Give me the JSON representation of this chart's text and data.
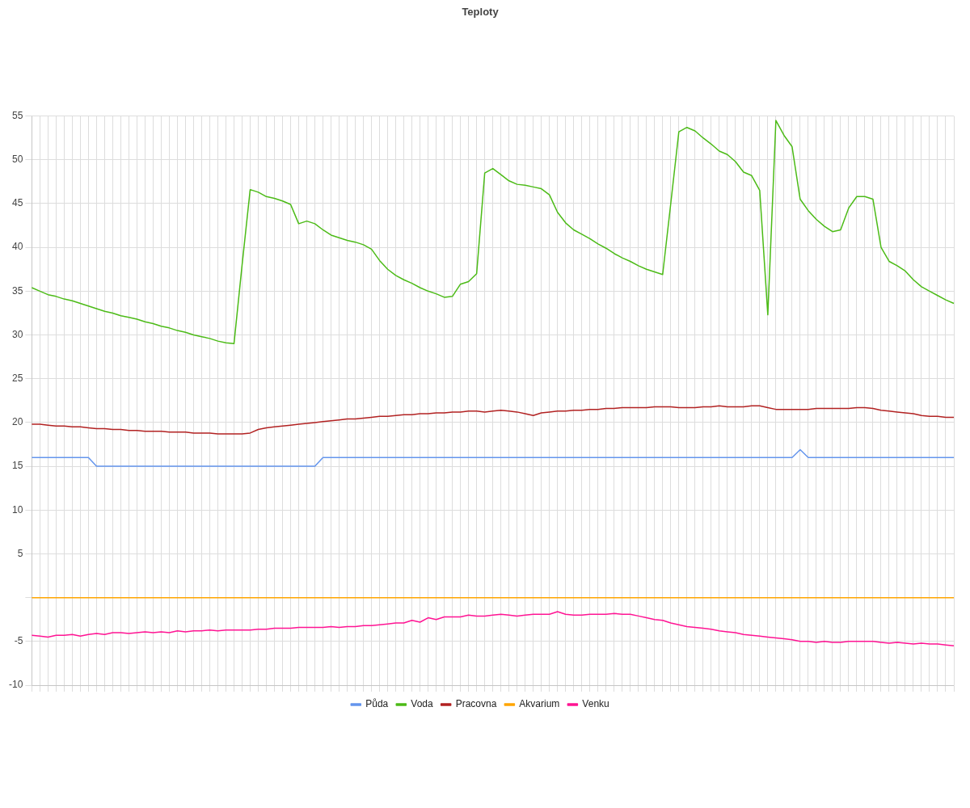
{
  "chart_data": {
    "type": "line",
    "title": "Teploty",
    "categories": [
      null,
      null,
      null,
      null,
      null,
      null,
      null,
      null,
      null,
      null,
      null,
      null,
      null,
      null,
      null,
      null,
      null,
      null,
      null,
      null,
      null,
      null,
      null,
      null,
      null,
      null,
      null,
      null,
      null,
      null,
      null,
      null,
      null,
      null,
      null,
      null,
      null,
      null,
      null,
      null,
      null,
      null,
      null,
      null,
      null,
      null,
      null,
      null,
      null,
      null,
      null,
      null,
      null,
      null,
      null,
      null,
      null,
      null,
      null,
      null,
      null,
      null,
      null,
      null,
      null,
      null,
      null,
      null,
      null,
      null,
      null,
      null,
      null,
      null,
      null,
      null,
      null,
      null,
      null,
      null,
      null,
      null,
      null,
      null,
      null,
      null,
      null,
      null,
      null,
      null,
      null,
      null,
      null,
      null,
      null,
      null,
      null,
      null,
      null,
      null,
      null,
      null,
      null,
      null,
      null,
      null,
      null,
      null,
      null,
      null,
      null,
      null,
      null,
      null,
      null
    ],
    "series": [
      {
        "name": "Půda",
        "color": "#6495ed",
        "values": [
          16,
          16,
          16,
          16,
          16,
          16,
          16,
          16,
          15,
          15,
          15,
          15,
          15,
          15,
          15,
          15,
          15,
          15,
          15,
          15,
          15,
          15,
          15,
          15,
          15,
          15,
          15,
          15,
          15,
          15,
          15,
          15,
          15,
          15,
          15,
          15,
          16,
          16,
          16,
          16,
          16,
          16,
          16,
          16,
          16,
          16,
          16,
          16,
          16,
          16,
          16,
          16,
          16,
          16,
          16,
          16,
          16,
          16,
          16,
          16,
          16,
          16,
          16,
          16,
          16,
          16,
          16,
          16,
          16,
          16,
          16,
          16,
          16,
          16,
          16,
          16,
          16,
          16,
          16,
          16,
          16,
          16,
          16,
          16,
          16,
          16,
          16,
          16,
          16,
          16,
          16,
          16,
          16,
          16,
          16,
          16.9,
          16,
          16,
          16,
          16,
          16,
          16,
          16,
          16,
          16,
          16,
          16,
          16,
          16,
          16,
          16,
          16,
          16,
          16,
          16
        ]
      },
      {
        "name": "Voda",
        "color": "#4cbb17",
        "values": [
          35.4,
          35.0,
          34.6,
          34.4,
          34.1,
          33.9,
          33.6,
          33.3,
          33.0,
          32.7,
          32.5,
          32.2,
          32.0,
          31.8,
          31.5,
          31.3,
          31.0,
          30.8,
          30.5,
          30.3,
          30.0,
          29.8,
          29.6,
          29.3,
          29.1,
          29.0,
          38,
          46.6,
          46.3,
          45.8,
          45.6,
          45.3,
          44.9,
          42.7,
          43.0,
          42.7,
          42.0,
          41.4,
          41.1,
          40.8,
          40.6,
          40.3,
          39.8,
          38.5,
          37.5,
          36.8,
          36.3,
          35.9,
          35.4,
          35.0,
          34.7,
          34.3,
          34.4,
          35.8,
          36.1,
          37.0,
          48.5,
          49.0,
          48.3,
          47.6,
          47.2,
          47.1,
          46.9,
          46.7,
          46.0,
          44.0,
          42.8,
          42.0,
          41.5,
          41.0,
          40.4,
          39.9,
          39.3,
          38.8,
          38.4,
          37.9,
          37.5,
          37.2,
          36.9,
          45,
          53.2,
          53.7,
          53.3,
          52.5,
          51.8,
          51.0,
          50.6,
          49.8,
          48.6,
          48.2,
          46.5,
          32.3,
          54.5,
          52.8,
          51.5,
          45.5,
          44.2,
          43.2,
          42.4,
          41.8,
          42.0,
          44.5,
          45.8,
          45.8,
          45.5,
          40,
          38.4,
          37.9,
          37.3,
          36.3,
          35.5,
          35.0,
          34.5,
          34.0,
          33.6
        ]
      },
      {
        "name": "Pracovna",
        "color": "#b22222",
        "values": [
          19.8,
          19.8,
          19.7,
          19.6,
          19.6,
          19.5,
          19.5,
          19.4,
          19.3,
          19.3,
          19.2,
          19.2,
          19.1,
          19.1,
          19.0,
          19.0,
          19.0,
          18.9,
          18.9,
          18.9,
          18.8,
          18.8,
          18.8,
          18.7,
          18.7,
          18.7,
          18.7,
          18.8,
          19.2,
          19.4,
          19.5,
          19.6,
          19.7,
          19.8,
          19.9,
          20.0,
          20.1,
          20.2,
          20.3,
          20.4,
          20.4,
          20.5,
          20.6,
          20.7,
          20.7,
          20.8,
          20.9,
          20.9,
          21.0,
          21.0,
          21.1,
          21.1,
          21.2,
          21.2,
          21.3,
          21.3,
          21.2,
          21.3,
          21.4,
          21.3,
          21.2,
          21.0,
          20.8,
          21.1,
          21.2,
          21.3,
          21.3,
          21.4,
          21.4,
          21.5,
          21.5,
          21.6,
          21.6,
          21.7,
          21.7,
          21.7,
          21.7,
          21.8,
          21.8,
          21.8,
          21.7,
          21.7,
          21.7,
          21.8,
          21.8,
          21.9,
          21.8,
          21.8,
          21.8,
          21.9,
          21.9,
          21.7,
          21.5,
          21.5,
          21.5,
          21.5,
          21.5,
          21.6,
          21.6,
          21.6,
          21.6,
          21.6,
          21.7,
          21.7,
          21.6,
          21.4,
          21.3,
          21.2,
          21.1,
          21.0,
          20.8,
          20.7,
          20.7,
          20.6,
          20.6
        ]
      },
      {
        "name": "Akvarium",
        "color": "#ffa500",
        "values": [
          0,
          0,
          0,
          0,
          0,
          0,
          0,
          0,
          0,
          0,
          0,
          0,
          0,
          0,
          0,
          0,
          0,
          0,
          0,
          0,
          0,
          0,
          0,
          0,
          0,
          0,
          0,
          0,
          0,
          0,
          0,
          0,
          0,
          0,
          0,
          0,
          0,
          0,
          0,
          0,
          0,
          0,
          0,
          0,
          0,
          0,
          0,
          0,
          0,
          0,
          0,
          0,
          0,
          0,
          0,
          0,
          0,
          0,
          0,
          0,
          0,
          0,
          0,
          0,
          0,
          0,
          0,
          0,
          0,
          0,
          0,
          0,
          0,
          0,
          0,
          0,
          0,
          0,
          0,
          0,
          0,
          0,
          0,
          0,
          0,
          0,
          0,
          0,
          0,
          0,
          0,
          0,
          0,
          0,
          0,
          0,
          0,
          0,
          0,
          0,
          0,
          0,
          0,
          0,
          0,
          0,
          0,
          0,
          0,
          0,
          0,
          0,
          0,
          0,
          0
        ]
      },
      {
        "name": "Venku",
        "color": "#ff1493",
        "values": [
          -4.3,
          -4.4,
          -4.5,
          -4.3,
          -4.3,
          -4.2,
          -4.4,
          -4.2,
          -4.1,
          -4.2,
          -4.0,
          -4.0,
          -4.1,
          -4.0,
          -3.9,
          -4.0,
          -3.9,
          -4.0,
          -3.8,
          -3.9,
          -3.8,
          -3.8,
          -3.7,
          -3.8,
          -3.7,
          -3.7,
          -3.7,
          -3.7,
          -3.6,
          -3.6,
          -3.5,
          -3.5,
          -3.5,
          -3.4,
          -3.4,
          -3.4,
          -3.4,
          -3.3,
          -3.4,
          -3.3,
          -3.3,
          -3.2,
          -3.2,
          -3.1,
          -3.0,
          -2.9,
          -2.9,
          -2.6,
          -2.8,
          -2.3,
          -2.5,
          -2.2,
          -2.2,
          -2.2,
          -2.0,
          -2.1,
          -2.1,
          -2.0,
          -1.9,
          -2.0,
          -2.1,
          -2.0,
          -1.9,
          -1.9,
          -1.9,
          -1.6,
          -1.9,
          -2.0,
          -2.0,
          -1.9,
          -1.9,
          -1.9,
          -1.8,
          -1.9,
          -1.9,
          -2.1,
          -2.3,
          -2.5,
          -2.6,
          -2.9,
          -3.1,
          -3.3,
          -3.4,
          -3.5,
          -3.6,
          -3.8,
          -3.9,
          -4.0,
          -4.2,
          -4.3,
          -4.4,
          -4.5,
          -4.6,
          -4.7,
          -4.8,
          -5.0,
          -5.0,
          -5.1,
          -5.0,
          -5.1,
          -5.1,
          -5.0,
          -5.0,
          -5.0,
          -5.0,
          -5.1,
          -5.2,
          -5.1,
          -5.2,
          -5.3,
          -5.2,
          -5.3,
          -5.3,
          -5.4,
          -5.5
        ]
      }
    ],
    "ylim": [
      -10,
      55
    ],
    "yticks": [
      -10,
      -5,
      {
        "value": 0,
        "label": null
      },
      5,
      10,
      15,
      20,
      25,
      30,
      35,
      40,
      45,
      50,
      55
    ],
    "grid": true,
    "legend": "bottom",
    "marker": "none",
    "line_style": "solid"
  }
}
